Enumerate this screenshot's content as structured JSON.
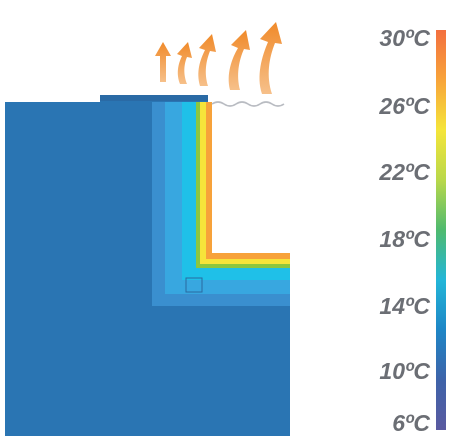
{
  "legend": {
    "labels": [
      "30ºC",
      "26ºC",
      "22ºC",
      "18ºC",
      "14ºC",
      "10ºC",
      "6ºC"
    ],
    "gradient": [
      "#f36f3f",
      "#f8a43a",
      "#f5e53a",
      "#b9d84a",
      "#4fba6f",
      "#23b6d8",
      "#1e86c6",
      "#3e63a9",
      "#5a5aa0"
    ]
  },
  "colors": {
    "wall": "#2a75b3",
    "wall_light": "#3a8fcf",
    "outer_blue": "#38a7e0",
    "insulation_cyan": "#1fc0e8",
    "green": "#8cc63f",
    "yellow": "#f6e43a",
    "orange": "#f7a23a",
    "heat_arrow": "#f29a3d"
  },
  "icons": [
    "heat-arrow-icon",
    "wavy-line-icon"
  ]
}
